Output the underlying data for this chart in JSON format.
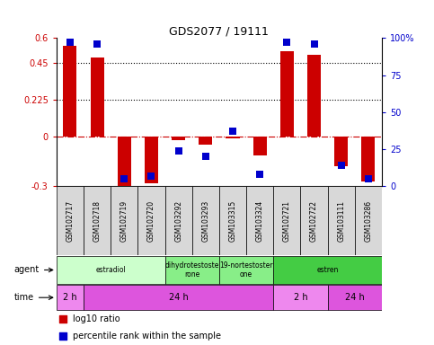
{
  "title": "GDS2077 / 19111",
  "samples": [
    "GSM102717",
    "GSM102718",
    "GSM102719",
    "GSM102720",
    "GSM103292",
    "GSM103293",
    "GSM103315",
    "GSM103324",
    "GSM102721",
    "GSM102722",
    "GSM103111",
    "GSM103286"
  ],
  "log10_ratio": [
    0.55,
    0.48,
    -0.32,
    -0.28,
    -0.02,
    -0.05,
    -0.01,
    -0.11,
    0.52,
    0.5,
    -0.18,
    -0.27
  ],
  "percentile_rank": [
    97,
    96,
    5,
    7,
    24,
    20,
    37,
    8,
    97,
    96,
    14,
    5
  ],
  "ylim_left": [
    -0.3,
    0.6
  ],
  "ylim_right": [
    0,
    100
  ],
  "yticks_left": [
    -0.3,
    0,
    0.225,
    0.45,
    0.6
  ],
  "yticks_right": [
    0,
    25,
    50,
    75,
    100
  ],
  "hlines": [
    0.45,
    0.225
  ],
  "agent_groups": [
    {
      "label": "estradiol",
      "start": 0,
      "end": 4,
      "color": "#ccffcc"
    },
    {
      "label": "dihydrotestoste\nrone",
      "start": 4,
      "end": 6,
      "color": "#88ee88"
    },
    {
      "label": "19-nortestoster\none",
      "start": 6,
      "end": 8,
      "color": "#88ee88"
    },
    {
      "label": "estren",
      "start": 8,
      "end": 12,
      "color": "#44cc44"
    }
  ],
  "time_groups": [
    {
      "label": "2 h",
      "start": 0,
      "end": 1,
      "color": "#ee88ee"
    },
    {
      "label": "24 h",
      "start": 1,
      "end": 8,
      "color": "#dd55dd"
    },
    {
      "label": "2 h",
      "start": 8,
      "end": 10,
      "color": "#ee88ee"
    },
    {
      "label": "24 h",
      "start": 10,
      "end": 12,
      "color": "#dd55dd"
    }
  ],
  "bar_color": "#cc0000",
  "dot_color": "#0000cc",
  "zero_line_color": "#cc0000",
  "grid_color": "#000000",
  "bg_color": "#ffffff",
  "left_label_color": "#cc0000",
  "right_label_color": "#0000cc",
  "bar_width": 0.5,
  "dot_size": 30
}
